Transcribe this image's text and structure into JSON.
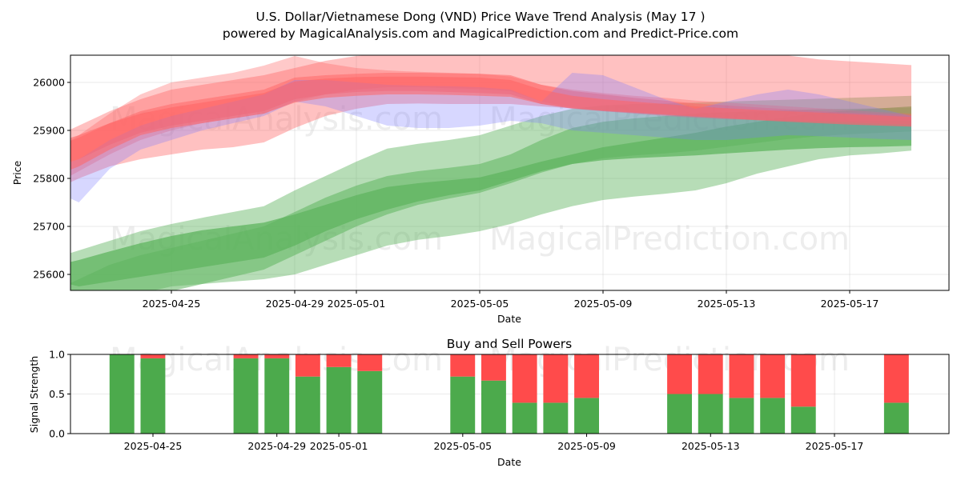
{
  "title_line1": "U.S. Dollar/Vietnamese Dong (VND) Price Wave Trend Analysis (May 17 )",
  "title_line2": "powered by MagicalAnalysis.com and MagicalPrediction.com and Predict-Price.com",
  "watermarks": [
    "MagicalAnalysis.com",
    "MagicalPrediction.com"
  ],
  "colors": {
    "buy": "#4caa4c",
    "sell": "#ff4b4b",
    "green_band": "#5fb45f",
    "red_band": "#ff6464",
    "blue_band": "#7a7aff"
  },
  "chart_data": [
    {
      "type": "area",
      "xlabel": "Date",
      "ylabel": "Price",
      "ylim": [
        25565,
        26055
      ],
      "x_ticks": [
        "2025-04-25",
        "2025-04-29",
        "2025-05-01",
        "2025-05-05",
        "2025-05-09",
        "2025-05-13",
        "2025-05-17"
      ],
      "y_ticks": [
        25600,
        25700,
        25800,
        25900,
        26000
      ],
      "grid": true,
      "x": [
        "2025-04-21",
        "2025-04-22",
        "2025-04-23",
        "2025-04-24",
        "2025-04-25",
        "2025-04-26",
        "2025-04-27",
        "2025-04-28",
        "2025-04-29",
        "2025-04-30",
        "2025-05-01",
        "2025-05-02",
        "2025-05-03",
        "2025-05-04",
        "2025-05-05",
        "2025-05-06",
        "2025-05-07",
        "2025-05-08",
        "2025-05-09",
        "2025-05-10",
        "2025-05-11",
        "2025-05-12",
        "2025-05-13",
        "2025-05-14",
        "2025-05-15",
        "2025-05-16",
        "2025-05-17",
        "2025-05-18",
        "2025-05-19"
      ],
      "series": [
        {
          "color": "green",
          "opacity": 0.45,
          "lower": [
            25600,
            25550,
            25540,
            25560,
            25575,
            25580,
            25585,
            25590,
            25600,
            25620,
            25640,
            25660,
            25672,
            25680,
            25690,
            25705,
            25725,
            25742,
            25755,
            25762,
            25768,
            25775,
            25790,
            25810,
            25825,
            25840,
            25848,
            25852,
            25858
          ],
          "upper": [
            25630,
            25650,
            25670,
            25690,
            25705,
            25718,
            25730,
            25742,
            25775,
            25805,
            25835,
            25862,
            25872,
            25880,
            25890,
            25910,
            25930,
            25945,
            25952,
            25955,
            25956,
            25958,
            25960,
            25962,
            25964,
            25966,
            25968,
            25970,
            25972
          ]
        },
        {
          "color": "green",
          "opacity": 0.75,
          "lower": [
            25590,
            25575,
            25585,
            25595,
            25605,
            25615,
            25625,
            25635,
            25660,
            25690,
            25715,
            25735,
            25752,
            25765,
            25775,
            25795,
            25815,
            25830,
            25838,
            25842,
            25845,
            25848,
            25852,
            25856,
            25860,
            25863,
            25865,
            25866,
            25868
          ],
          "upper": [
            25615,
            25630,
            25648,
            25665,
            25680,
            25692,
            25700,
            25708,
            25725,
            25745,
            25765,
            25782,
            25790,
            25796,
            25802,
            25818,
            25835,
            25850,
            25865,
            25875,
            25885,
            25895,
            25908,
            25918,
            25928,
            25936,
            25942,
            25946,
            25950
          ]
        },
        {
          "color": "green",
          "opacity": 0.55,
          "lower": [
            25500,
            25510,
            25530,
            25550,
            25565,
            25580,
            25595,
            25610,
            25640,
            25670,
            25700,
            25725,
            25745,
            25758,
            25770,
            25790,
            25812,
            25830,
            25842,
            25848,
            25852,
            25858,
            25866,
            25874,
            25882,
            25888,
            25892,
            25895,
            25898
          ],
          "upper": [
            25560,
            25590,
            25620,
            25640,
            25655,
            25670,
            25685,
            25700,
            25730,
            25760,
            25785,
            25805,
            25815,
            25822,
            25830,
            25850,
            25880,
            25905,
            25918,
            25925,
            25930,
            25935,
            25938,
            25940,
            25942,
            25944,
            25945,
            25946,
            25947
          ]
        },
        {
          "color": "red",
          "opacity": 0.4,
          "lower": [
            25770,
            25800,
            25825,
            25840,
            25850,
            25860,
            25865,
            25875,
            25905,
            25930,
            25945,
            25955,
            25956,
            25955,
            25955,
            25955,
            25950,
            25946,
            25940,
            25935,
            25930,
            25926,
            25923,
            25922,
            25921,
            25920,
            25920,
            25920,
            25920
          ],
          "upper": [
            25880,
            25910,
            25940,
            25965,
            25985,
            25995,
            26005,
            26015,
            26030,
            26045,
            26055,
            26060,
            26062,
            26062,
            26062,
            26062,
            26060,
            26058,
            26058,
            26058,
            26058,
            26058,
            26058,
            26057,
            26056,
            26048,
            26044,
            26040,
            26036
          ]
        },
        {
          "color": "red",
          "opacity": 0.35,
          "lower": [
            25780,
            25815,
            25850,
            25880,
            25900,
            25915,
            25925,
            25935,
            25960,
            25975,
            25985,
            25990,
            25990,
            25988,
            25986,
            25982,
            25960,
            25948,
            25942,
            25938,
            25934,
            25930,
            25926,
            25922,
            25918,
            25915,
            25912,
            25910,
            25908
          ],
          "upper": [
            25850,
            25890,
            25935,
            25975,
            26000,
            26010,
            26020,
            26035,
            26055,
            26040,
            26030,
            26025,
            26022,
            26020,
            26018,
            26012,
            25995,
            25985,
            25978,
            25972,
            25968,
            25962,
            25958,
            25954,
            25950,
            25946,
            25942,
            25938,
            25935
          ]
        },
        {
          "color": "red",
          "opacity": 0.5,
          "lower": [
            25820,
            25840,
            25870,
            25895,
            25910,
            25920,
            25930,
            25940,
            25965,
            25975,
            25980,
            25982,
            25982,
            25980,
            25978,
            25975,
            25955,
            25945,
            25940,
            25936,
            25932,
            25928,
            25925,
            25922,
            25920,
            25918,
            25916,
            25914,
            25912
          ],
          "upper": [
            25860,
            25885,
            25915,
            25940,
            25955,
            25965,
            25975,
            25985,
            26010,
            26015,
            26018,
            26020,
            26020,
            26019,
            26018,
            26015,
            25995,
            25982,
            25975,
            25968,
            25962,
            25956,
            25952,
            25948,
            25944,
            25940,
            25937,
            25934,
            25932
          ]
        },
        {
          "color": "blue",
          "opacity": 0.3,
          "lower": [
            25780,
            25750,
            25820,
            25860,
            25880,
            25900,
            25915,
            25930,
            25960,
            25950,
            25930,
            25910,
            25905,
            25905,
            25910,
            25920,
            25915,
            25900,
            25895,
            25890,
            25885,
            25880,
            25880,
            25885,
            25890,
            25888,
            25885,
            25882,
            25880
          ],
          "upper": [
            25820,
            25840,
            25880,
            25910,
            25930,
            25945,
            25960,
            25975,
            26005,
            26005,
            26000,
            25995,
            25993,
            25992,
            25990,
            25985,
            25960,
            26020,
            26015,
            25990,
            25965,
            25945,
            25960,
            25975,
            25985,
            25975,
            25960,
            25945,
            25930
          ]
        },
        {
          "color": "red",
          "opacity": 0.55,
          "lower": [
            25800,
            25825,
            25860,
            25890,
            25905,
            25915,
            25925,
            25935,
            25958,
            25968,
            25972,
            25975,
            25975,
            25974,
            25972,
            25970,
            25955,
            25946,
            25941,
            25937,
            25933,
            25929,
            25925,
            25921,
            25918,
            25915,
            25912,
            25910,
            25908
          ],
          "upper": [
            25870,
            25890,
            25915,
            25935,
            25948,
            25958,
            25968,
            25978,
            26002,
            26008,
            26011,
            26012,
            26012,
            26011,
            26010,
            26005,
            25985,
            25972,
            25965,
            25960,
            25955,
            25950,
            25946,
            25943,
            25940,
            25937,
            25934,
            25931,
            25928
          ]
        }
      ]
    },
    {
      "type": "bar",
      "title": "Buy and Sell Powers",
      "xlabel": "Date",
      "ylabel": "Signal Strength",
      "ylim": [
        0,
        1
      ],
      "y_ticks": [
        "0.0",
        "0.5",
        "1.0"
      ],
      "x_ticks": [
        "2025-04-25",
        "2025-04-29",
        "2025-05-01",
        "2025-05-05",
        "2025-05-09",
        "2025-05-13",
        "2025-05-17"
      ],
      "categories": [
        "2025-04-24",
        "2025-04-25",
        "2025-04-28",
        "2025-04-29",
        "2025-04-30",
        "2025-05-01",
        "2025-05-02",
        "2025-05-05",
        "2025-05-06",
        "2025-05-07",
        "2025-05-08",
        "2025-05-09",
        "2025-05-12",
        "2025-05-13",
        "2025-05-14",
        "2025-05-15",
        "2025-05-16",
        "2025-05-19"
      ],
      "buy": [
        1.0,
        0.95,
        0.95,
        0.95,
        0.72,
        0.84,
        0.79,
        0.72,
        0.67,
        0.39,
        0.39,
        0.45,
        0.5,
        0.5,
        0.45,
        0.45,
        0.34,
        0.39
      ],
      "sell": [
        0.0,
        0.05,
        0.05,
        0.05,
        0.28,
        0.16,
        0.21,
        0.28,
        0.33,
        0.61,
        0.61,
        0.55,
        0.5,
        0.5,
        0.55,
        0.55,
        0.66,
        0.61
      ]
    }
  ]
}
